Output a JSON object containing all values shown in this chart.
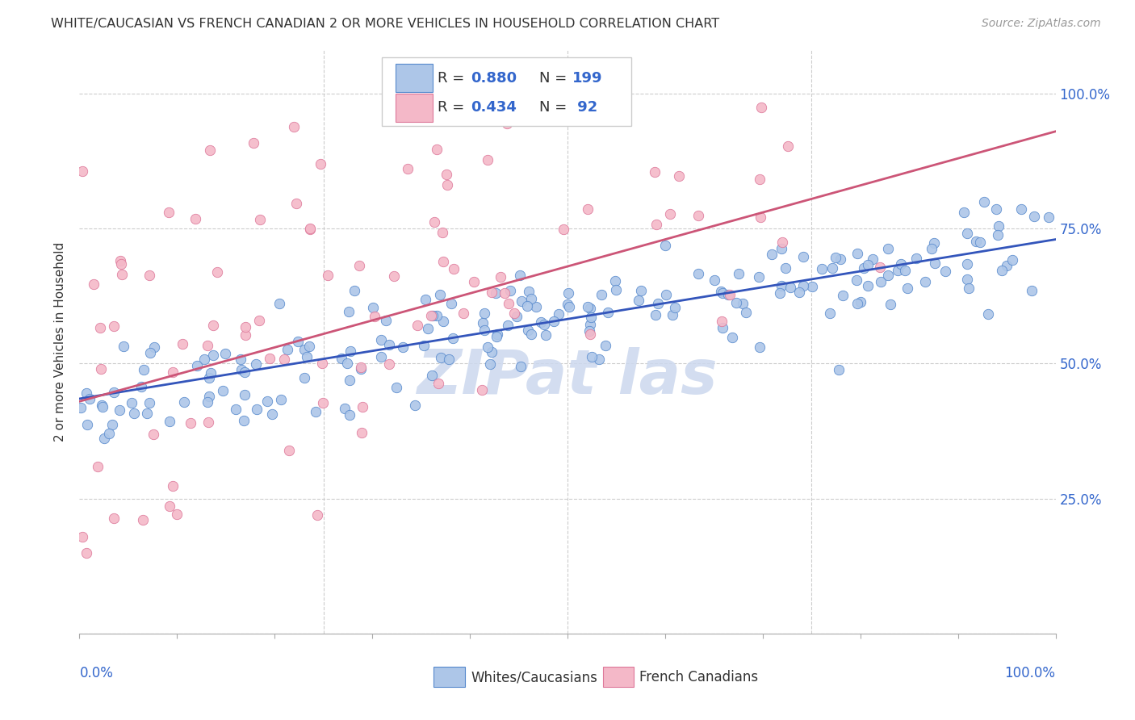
{
  "title": "WHITE/CAUCASIAN VS FRENCH CANADIAN 2 OR MORE VEHICLES IN HOUSEHOLD CORRELATION CHART",
  "source": "Source: ZipAtlas.com",
  "ylabel": "2 or more Vehicles in Household",
  "ytick_labels": [
    "",
    "25.0%",
    "50.0%",
    "75.0%",
    "100.0%"
  ],
  "ytick_positions": [
    0.0,
    0.25,
    0.5,
    0.75,
    1.0
  ],
  "blue_R": 0.88,
  "blue_N": 199,
  "pink_R": 0.434,
  "pink_N": 92,
  "blue_fill_color": "#adc6e8",
  "pink_fill_color": "#f4b8c8",
  "blue_edge_color": "#5588cc",
  "pink_edge_color": "#dd7799",
  "blue_line_color": "#3355bb",
  "pink_line_color": "#cc5577",
  "title_color": "#333333",
  "axis_label_color": "#3366cc",
  "legend_R_color": "#333333",
  "legend_N_color": "#3366cc",
  "watermark_color": "#ccd8ee",
  "background_color": "#ffffff",
  "grid_color": "#cccccc",
  "title_fontsize": 11.5,
  "source_fontsize": 10,
  "axis_tick_fontsize": 12,
  "ylabel_fontsize": 11
}
